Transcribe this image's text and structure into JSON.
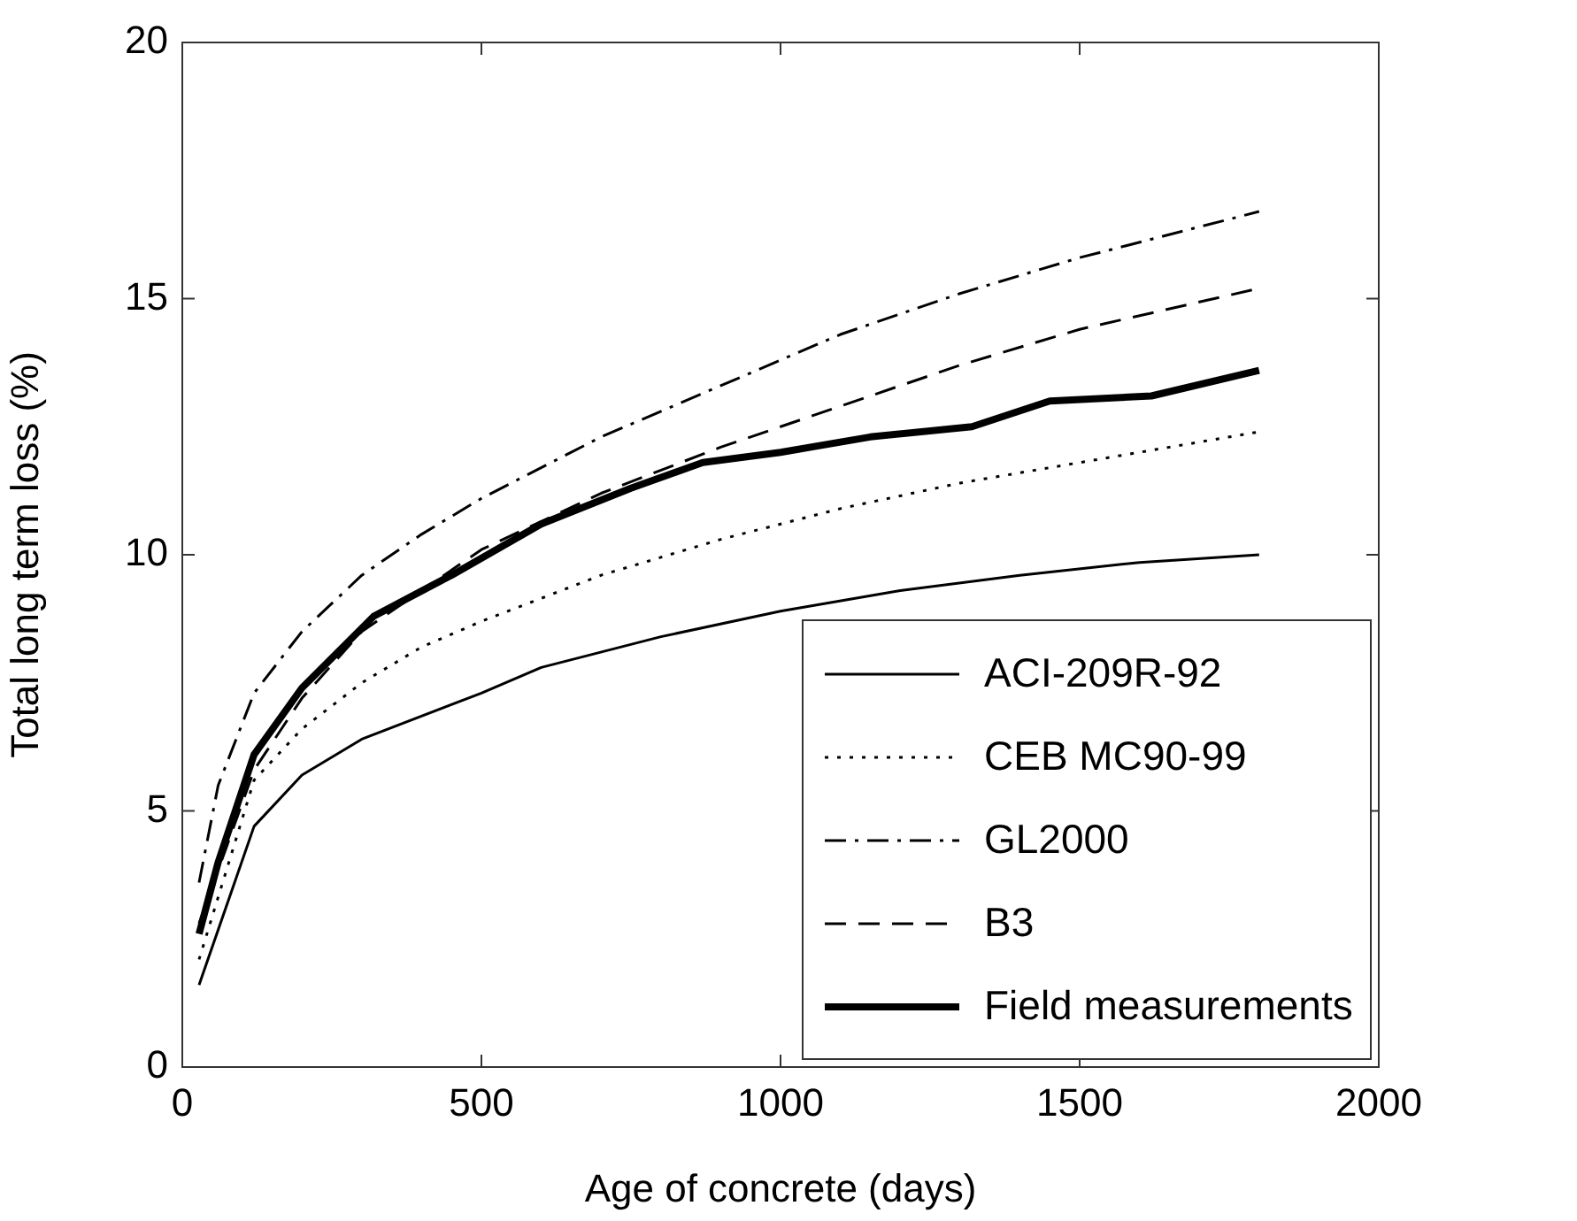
{
  "chart_data": {
    "type": "line",
    "xlabel": "Age of concrete (days)",
    "ylabel": "Total long term loss (%)",
    "xlim": [
      0,
      2000
    ],
    "xticks": [
      0,
      500,
      1000,
      1500,
      2000
    ],
    "ylim": [
      0,
      20
    ],
    "yticks": [
      0,
      5,
      10,
      15,
      20
    ],
    "grid": false,
    "legend": "bottom right",
    "marker": "none",
    "series": [
      {
        "name": "ACI-209R-92",
        "color": "#000000",
        "line_style": "solid",
        "x": [
          28,
          120,
          200,
          300,
          500,
          600,
          800,
          1000,
          1200,
          1400,
          1600,
          1800
        ],
        "values": [
          1.6,
          4.7,
          5.7,
          6.4,
          7.3,
          7.8,
          8.4,
          8.9,
          9.3,
          9.6,
          9.85,
          10.0
        ]
      },
      {
        "name": "CEB MC90-99",
        "color": "#000000",
        "line_style": "dotted",
        "x": [
          28,
          120,
          200,
          300,
          400,
          500,
          700,
          900,
          1100,
          1300,
          1500,
          1800
        ],
        "values": [
          2.1,
          5.6,
          6.6,
          7.5,
          8.2,
          8.7,
          9.6,
          10.3,
          10.9,
          11.4,
          11.8,
          12.4
        ]
      },
      {
        "name": "GL2000",
        "color": "#000000",
        "line_style": "dashdot",
        "x": [
          28,
          60,
          120,
          200,
          300,
          400,
          500,
          700,
          900,
          1100,
          1300,
          1500,
          1800
        ],
        "values": [
          3.6,
          5.5,
          7.3,
          8.5,
          9.6,
          10.4,
          11.1,
          12.3,
          13.3,
          14.3,
          15.1,
          15.8,
          16.7
        ]
      },
      {
        "name": "B3",
        "color": "#000000",
        "line_style": "dashed",
        "x": [
          28,
          120,
          200,
          300,
          400,
          500,
          700,
          900,
          1100,
          1300,
          1500,
          1800
        ],
        "values": [
          2.8,
          5.8,
          7.2,
          8.5,
          9.3,
          10.1,
          11.2,
          12.1,
          12.9,
          13.7,
          14.4,
          15.2
        ]
      },
      {
        "name": "Field measurements",
        "color": "#000000",
        "line_style": "solid",
        "x": [
          28,
          60,
          120,
          200,
          320,
          450,
          600,
          750,
          870,
          1000,
          1150,
          1320,
          1450,
          1620,
          1800
        ],
        "values": [
          2.6,
          4.0,
          6.1,
          7.4,
          8.8,
          9.6,
          10.6,
          11.3,
          11.8,
          12.0,
          12.3,
          12.5,
          13.0,
          13.1,
          13.6
        ]
      }
    ]
  }
}
